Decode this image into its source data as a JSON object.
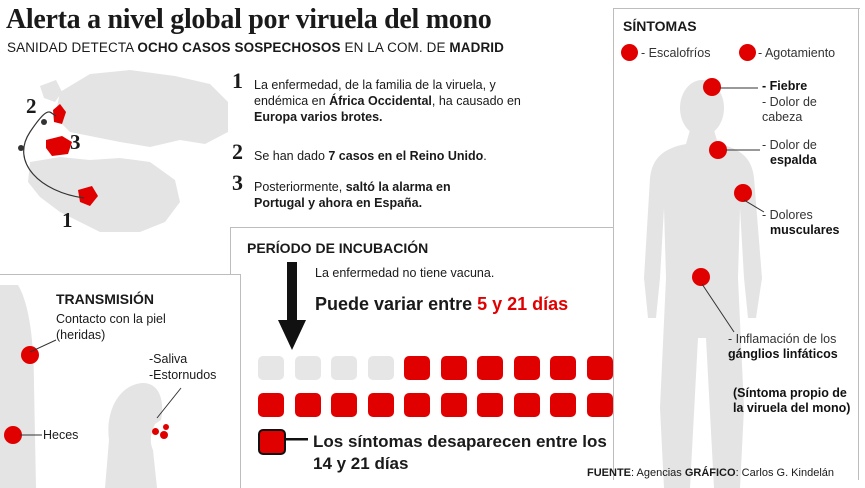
{
  "title": "Alerta a nivel global por viruela del mono",
  "subtitle": {
    "prefix": "SANIDAD DETECTA ",
    "bold1": "OCHO CASOS SOSPECHOSOS",
    "middle": " EN LA COM. DE ",
    "bold2": "MADRID"
  },
  "map": {
    "markers": [
      "2",
      "3",
      "1"
    ]
  },
  "steps": [
    {
      "num": "1",
      "t1": "La enfermedad, de la familia de la viruela, y endémica en ",
      "b1": "África Occidental",
      "t2": ", ha causado en ",
      "b2": "Europa varios brotes."
    },
    {
      "num": "2",
      "t1": "Se han dado ",
      "b1": "7 casos en el Reino Unido",
      "t2": "."
    },
    {
      "num": "3",
      "t1": "Posteriormente, ",
      "b1": "saltó la alarma en Portugal y ahora en España."
    }
  ],
  "transmision": {
    "heading": "TRANSMISIÓN",
    "contacto": "Contacto con la piel (heridas)",
    "saliva": "-Saliva",
    "estornudos": "-Estornudos",
    "heces": "Heces"
  },
  "incubacion": {
    "heading": "PERÍODO DE INCUBACIÓN",
    "vacuna": "La enfermedad no tiene vacuna.",
    "variar_prefix": "Puede variar entre ",
    "variar_highlight": "5 y 21 días",
    "grid": {
      "total": 21,
      "grey": 4
    },
    "legend": "Los síntomas desaparecen entre los 14 y 21 días",
    "colors": {
      "red": "#e10000",
      "grey": "#e6e6e6"
    }
  },
  "sintomas": {
    "heading": "SÍNTOMAS",
    "escalofrios": "- Escalofríos",
    "agotamiento": "- Agotamiento",
    "fiebre": "- Fiebre",
    "dolor_cabeza": "- Dolor de cabeza",
    "dolor_espalda_a": "- Dolor de",
    "dolor_espalda_b": "espalda",
    "dolores_a": "- Dolores",
    "dolores_b": "musculares",
    "inflam_a": "- Inflamación de los ",
    "inflam_b": "gánglios linfáticos",
    "propio": "(Síntoma propio de la viruela del mono)"
  },
  "credits": {
    "fuente_label": "FUENTE",
    "fuente": ": Agencias ",
    "grafico_label": "GRÁFICO",
    "grafico": ": Carlos G. Kindelán"
  }
}
